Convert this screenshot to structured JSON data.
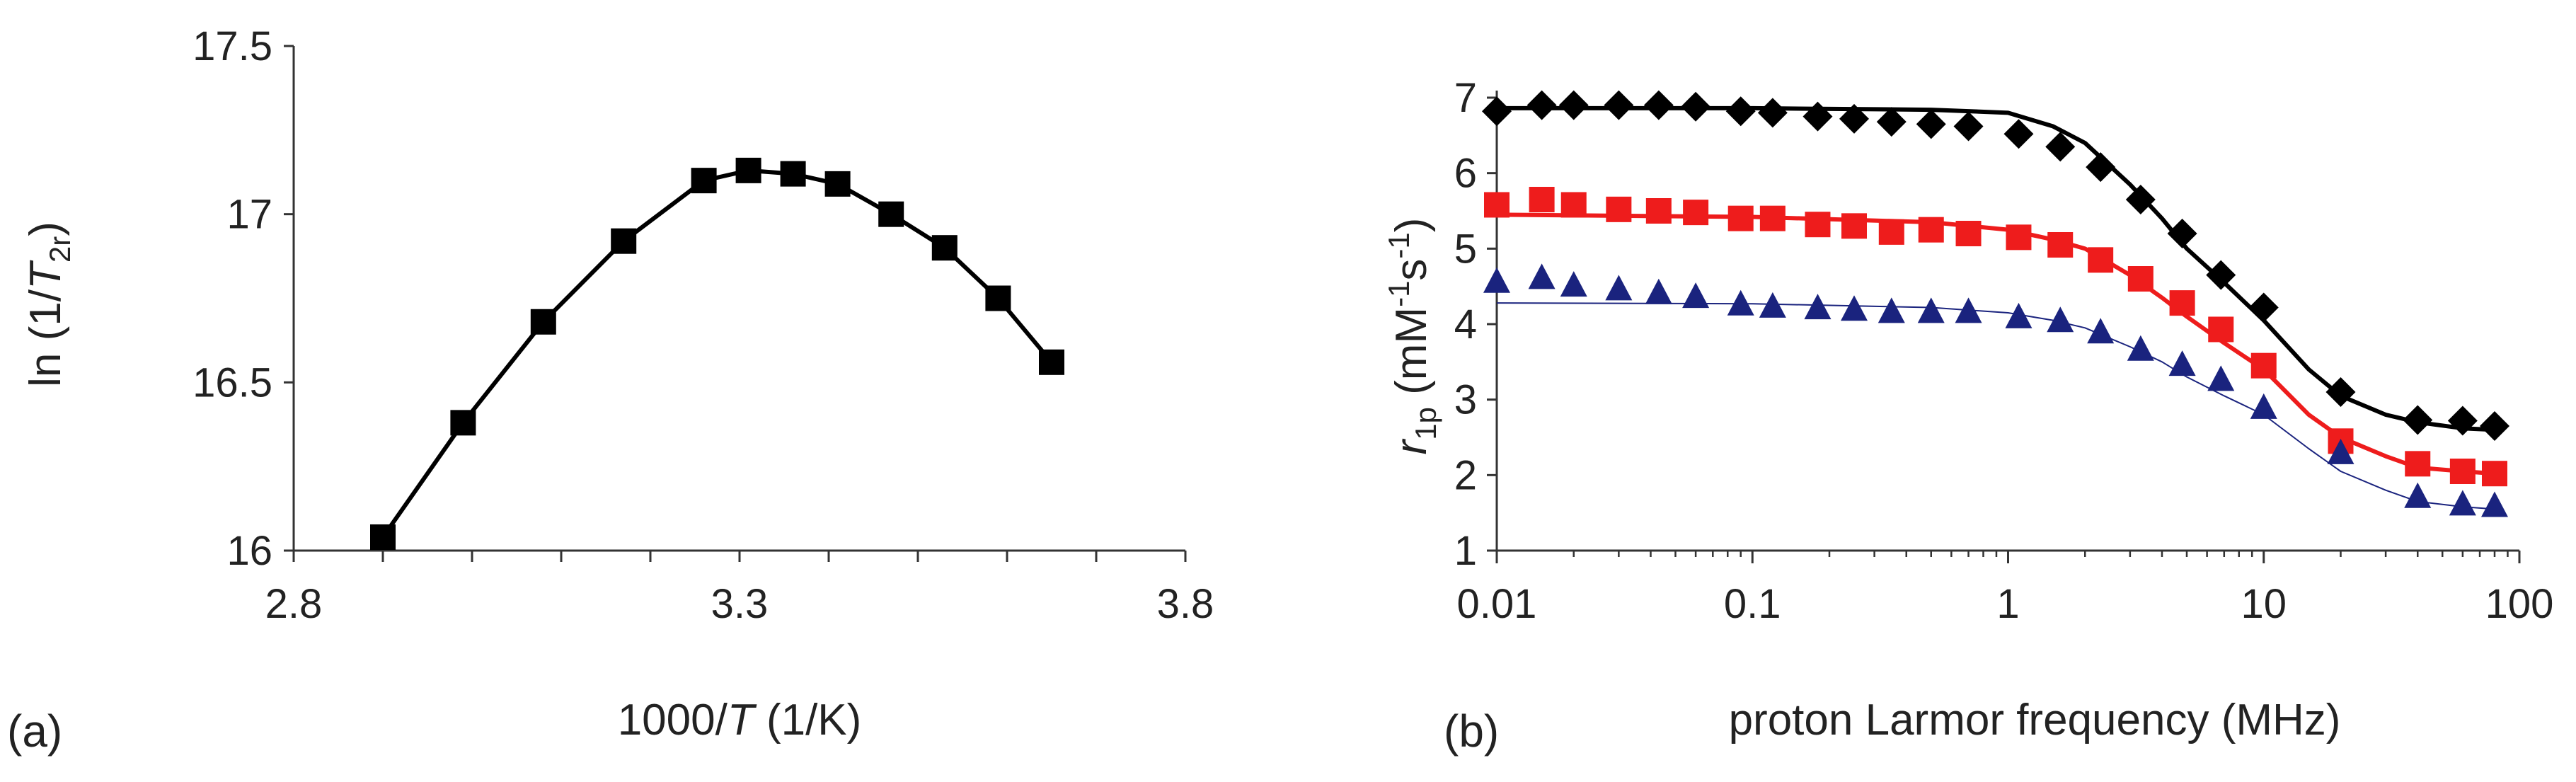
{
  "figure": {
    "panel_a_label": "(a)",
    "panel_b_label": "(b)"
  },
  "chart_data": [
    {
      "panel": "a",
      "type": "line",
      "title": "",
      "xlabel": {
        "prefix": "1000/",
        "italic": "T",
        "suffix": " (1/K)"
      },
      "ylabel": {
        "prefix": "ln (1/",
        "italic": "T",
        "sub": "2r",
        "suffix": ")"
      },
      "xlim": [
        2.8,
        3.8
      ],
      "ylim": [
        16,
        17.5
      ],
      "xticks": [
        2.8,
        3.3,
        3.8
      ],
      "xtick_labels": [
        "2.8",
        "3.3",
        "3.8"
      ],
      "x_minor_step": 0.1,
      "yticks": [
        16,
        16.5,
        17,
        17.5
      ],
      "ytick_labels": [
        "16",
        "16.5",
        "17",
        "17.5"
      ],
      "grid": false,
      "series": [
        {
          "name": "ln(1/T2r)",
          "marker": "square",
          "color": "#000000",
          "x": [
            2.9,
            2.99,
            3.08,
            3.17,
            3.26,
            3.31,
            3.36,
            3.41,
            3.47,
            3.53,
            3.59,
            3.65
          ],
          "y": [
            16.04,
            16.38,
            16.68,
            16.92,
            17.1,
            17.13,
            17.12,
            17.09,
            17.0,
            16.9,
            16.75,
            16.56
          ]
        }
      ]
    },
    {
      "panel": "b",
      "type": "scatter",
      "title": "",
      "xscale": "log",
      "xlabel": "proton Larmor frequency (MHz)",
      "ylabel": {
        "italic": "r",
        "sub": "1p",
        "suffix": " (mM",
        "sup1": "-1",
        "mid": "s",
        "sup2": "-1",
        "end": ")"
      },
      "xlim": [
        0.01,
        100
      ],
      "ylim": [
        1,
        7
      ],
      "xticks": [
        0.01,
        0.1,
        1,
        10,
        100
      ],
      "xtick_labels": [
        "0.01",
        "0.1",
        "1",
        "10",
        "100"
      ],
      "yticks": [
        1,
        2,
        3,
        4,
        5,
        6,
        7
      ],
      "ytick_labels": [
        "1",
        "2",
        "3",
        "4",
        "5",
        "6",
        "7"
      ],
      "grid": false,
      "x": [
        0.01,
        0.015,
        0.02,
        0.03,
        0.043,
        0.06,
        0.09,
        0.12,
        0.18,
        0.25,
        0.35,
        0.5,
        0.7,
        1.1,
        1.6,
        2.3,
        3.3,
        4.8,
        6.8,
        10,
        20,
        40,
        60,
        80
      ],
      "series": [
        {
          "name": "diamonds",
          "marker": "diamond",
          "color": "#000000",
          "values": [
            6.82,
            6.9,
            6.9,
            6.9,
            6.9,
            6.88,
            6.82,
            6.8,
            6.75,
            6.72,
            6.68,
            6.65,
            6.62,
            6.52,
            6.35,
            6.08,
            5.65,
            5.2,
            4.65,
            4.22,
            3.1,
            2.73,
            2.72,
            2.65
          ],
          "fit": {
            "color": "#000000",
            "width": "thick",
            "x": [
              0.01,
              0.1,
              0.5,
              1,
              1.5,
              2,
              3,
              4,
              5,
              7,
              10,
              15,
              20,
              30,
              40,
              60,
              80
            ],
            "values": [
              6.86,
              6.86,
              6.84,
              6.8,
              6.62,
              6.4,
              5.85,
              5.4,
              5.0,
              4.55,
              4.05,
              3.4,
              3.05,
              2.8,
              2.7,
              2.62,
              2.6
            ]
          }
        },
        {
          "name": "squares",
          "marker": "square",
          "color": "#ee1c1c",
          "values": [
            5.58,
            5.65,
            5.58,
            5.52,
            5.5,
            5.48,
            5.4,
            5.4,
            5.32,
            5.3,
            5.22,
            5.25,
            5.2,
            5.15,
            5.05,
            4.85,
            4.6,
            4.28,
            3.93,
            3.45,
            2.45,
            2.15,
            2.05,
            2.02
          ],
          "fit": {
            "color": "#ee1c1c",
            "width": "thick",
            "x": [
              0.01,
              0.1,
              0.5,
              1,
              1.5,
              2,
              3,
              4,
              5,
              7,
              10,
              15,
              20,
              30,
              40,
              60,
              80
            ],
            "values": [
              5.45,
              5.42,
              5.35,
              5.25,
              5.12,
              5.0,
              4.65,
              4.35,
              4.1,
              3.75,
              3.4,
              2.8,
              2.5,
              2.25,
              2.1,
              2.05,
              2.02
            ]
          }
        },
        {
          "name": "triangles",
          "marker": "triangle",
          "color": "#1a237e",
          "values": [
            4.55,
            4.6,
            4.5,
            4.45,
            4.4,
            4.35,
            4.25,
            4.22,
            4.2,
            4.18,
            4.15,
            4.15,
            4.15,
            4.08,
            4.03,
            3.88,
            3.65,
            3.45,
            3.25,
            2.88,
            2.28,
            1.7,
            1.6,
            1.58
          ],
          "fit": {
            "color": "#1a237e",
            "width": "thin",
            "x": [
              0.01,
              0.1,
              0.5,
              1,
              1.5,
              2,
              3,
              4,
              5,
              7,
              10,
              15,
              20,
              30,
              40,
              60,
              80
            ],
            "values": [
              4.28,
              4.27,
              4.22,
              4.15,
              4.05,
              3.95,
              3.7,
              3.5,
              3.3,
              3.05,
              2.8,
              2.35,
              2.05,
              1.8,
              1.65,
              1.58,
              1.55
            ]
          }
        }
      ]
    }
  ]
}
